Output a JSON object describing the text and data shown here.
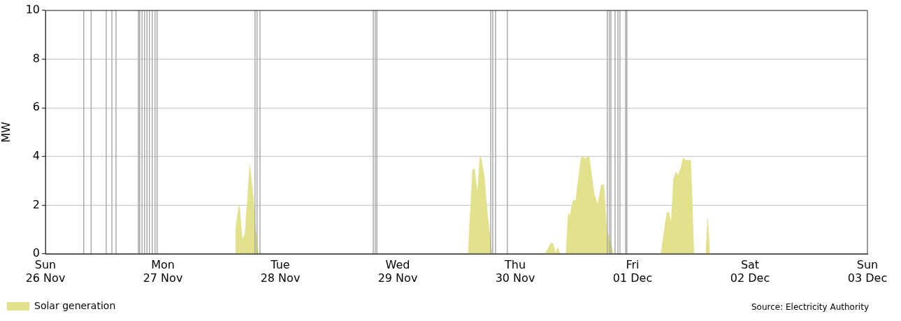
{
  "chart_data": {
    "type": "area",
    "ylabel": "MW",
    "x": [
      "--11-27T14:45",
      "--11-27T14:50",
      "--11-27T15:30",
      "--11-27T15:45",
      "--11-27T16:15",
      "--11-27T16:45",
      "--11-27T17:45",
      "--11-27T18:35",
      "--11-27T19:00",
      "--11-27T19:35",
      "--11-29T14:20",
      "--11-29T15:15",
      "--11-29T15:45",
      "--11-29T16:15",
      "--11-29T16:45",
      "--11-29T17:05",
      "--11-29T17:45",
      "--11-29T18:25",
      "--11-29T19:20",
      "--11-30T06:05",
      "--11-30T07:20",
      "--11-30T07:50",
      "--11-30T08:15",
      "--11-30T08:45",
      "--11-30T09:15",
      "--11-30T10:20",
      "--11-30T10:50",
      "--11-30T11:10",
      "--11-30T11:45",
      "--11-30T12:20",
      "--11-30T13:25",
      "--11-30T14:00",
      "--11-30T14:20",
      "--11-30T14:45",
      "--11-30T15:10",
      "--11-30T16:10",
      "--11-30T16:50",
      "--11-30T17:35",
      "--11-30T18:10",
      "--11-30T18:45",
      "--11-30T20:10",
      "--12-01T05:45",
      "--12-01T06:55",
      "--12-01T07:25",
      "--12-01T07:50",
      "--12-01T08:20",
      "--12-01T08:55",
      "--12-01T09:15",
      "--12-01T09:45",
      "--12-01T10:20",
      "--12-01T10:55",
      "--12-01T11:55",
      "--12-01T12:10",
      "--12-01T12:35",
      "--12-01T14:55",
      "--12-01T15:20",
      "--12-01T15:50"
    ],
    "series": [
      {
        "name": "Solar generation",
        "color": "#e2e18c",
        "values": [
          0,
          1.05,
          2.0,
          1.9,
          0.6,
          0.85,
          3.75,
          2.2,
          1.0,
          0,
          0,
          3.45,
          3.5,
          2.55,
          4.0,
          3.95,
          3.15,
          1.55,
          0,
          0,
          0.47,
          0.42,
          0.05,
          0.27,
          0,
          0,
          1.75,
          1.55,
          2.2,
          2.2,
          3.95,
          4.0,
          3.9,
          4.0,
          4.0,
          2.5,
          2.05,
          2.85,
          2.85,
          1.0,
          0,
          0,
          1.65,
          1.75,
          1.3,
          3.1,
          3.4,
          3.25,
          3.5,
          3.95,
          3.85,
          3.85,
          2.5,
          0,
          0,
          1.55,
          0
        ]
      }
    ],
    "xlim": [
      "--11-26",
      "--12-03"
    ],
    "xticks": [
      {
        "value": "--11-26",
        "label": "Sun\n26 Nov"
      },
      {
        "value": "--11-27",
        "label": "Mon\n27 Nov"
      },
      {
        "value": "--11-28",
        "label": "Tue\n28 Nov"
      },
      {
        "value": "--11-29",
        "label": "Wed\n29 Nov"
      },
      {
        "value": "--11-30",
        "label": "Thu\n30 Nov"
      },
      {
        "value": "--12-01",
        "label": "Fri\n01 Dec"
      },
      {
        "value": "--12-02",
        "label": "Sat\n02 Dec"
      },
      {
        "value": "--12-03",
        "label": "Sun\n03 Dec"
      }
    ],
    "ylim": [
      0,
      10
    ],
    "yticks": [
      0,
      2,
      4,
      6,
      8,
      10
    ],
    "grid": "y",
    "legend": "bottom left",
    "ref_lines": [
      {
        "axis": "x",
        "value": "--11-26T07:50",
        "color": "#aaaaaa"
      },
      {
        "axis": "x",
        "value": "--11-26T09:20",
        "color": "#aaaaaa"
      },
      {
        "axis": "x",
        "value": "--11-26T12:25",
        "color": "#aaaaaa"
      },
      {
        "axis": "x",
        "value": "--11-26T13:35",
        "color": "#aaaaaa"
      },
      {
        "axis": "x",
        "value": "--11-26T14:25",
        "color": "#aaaaaa"
      },
      {
        "axis": "x",
        "value": "--11-26T19:00",
        "color": "#aaaaaa"
      },
      {
        "axis": "x",
        "value": "--11-26T19:15",
        "color": "#aaaaaa"
      },
      {
        "axis": "x",
        "value": "--11-26T19:45",
        "color": "#aaaaaa"
      },
      {
        "axis": "x",
        "value": "--11-26T20:15",
        "color": "#aaaaaa"
      },
      {
        "axis": "x",
        "value": "--11-26T20:45",
        "color": "#aaaaaa"
      },
      {
        "axis": "x",
        "value": "--11-26T21:15",
        "color": "#aaaaaa"
      },
      {
        "axis": "x",
        "value": "--11-26T21:50",
        "color": "#aaaaaa"
      },
      {
        "axis": "x",
        "value": "--11-26T22:25",
        "color": "#aaaaaa"
      },
      {
        "axis": "x",
        "value": "--11-26T22:50",
        "color": "#aaaaaa"
      },
      {
        "axis": "x",
        "value": "--11-27T18:50",
        "color": "#aaaaaa"
      },
      {
        "axis": "x",
        "value": "--11-27T19:15",
        "color": "#aaaaaa"
      },
      {
        "axis": "x",
        "value": "--11-27T19:50",
        "color": "#aaaaaa"
      },
      {
        "axis": "x",
        "value": "--11-28T19:00",
        "color": "#aaaaaa"
      },
      {
        "axis": "x",
        "value": "--11-28T19:25",
        "color": "#aaaaaa"
      },
      {
        "axis": "x",
        "value": "--11-28T19:45",
        "color": "#aaaaaa"
      },
      {
        "axis": "x",
        "value": "--11-29T19:00",
        "color": "#aaaaaa"
      },
      {
        "axis": "x",
        "value": "--11-29T19:25",
        "color": "#aaaaaa"
      },
      {
        "axis": "x",
        "value": "--11-29T20:00",
        "color": "#aaaaaa"
      },
      {
        "axis": "x",
        "value": "--11-29T22:25",
        "color": "#aaaaaa"
      },
      {
        "axis": "x",
        "value": "--11-30T18:50",
        "color": "#aaaaaa"
      },
      {
        "axis": "x",
        "value": "--11-30T19:15",
        "color": "#aaaaaa"
      },
      {
        "axis": "x",
        "value": "--11-30T19:35",
        "color": "#aaaaaa"
      },
      {
        "axis": "x",
        "value": "--11-30T20:25",
        "color": "#aaaaaa"
      },
      {
        "axis": "x",
        "value": "--11-30T21:00",
        "color": "#aaaaaa"
      },
      {
        "axis": "x",
        "value": "--11-30T21:25",
        "color": "#aaaaaa"
      },
      {
        "axis": "x",
        "value": "--11-30T22:35",
        "color": "#aaaaaa"
      },
      {
        "axis": "x",
        "value": "--11-30T22:50",
        "color": "#aaaaaa"
      }
    ],
    "annotations": [
      "Source: Electricity Authority"
    ]
  }
}
